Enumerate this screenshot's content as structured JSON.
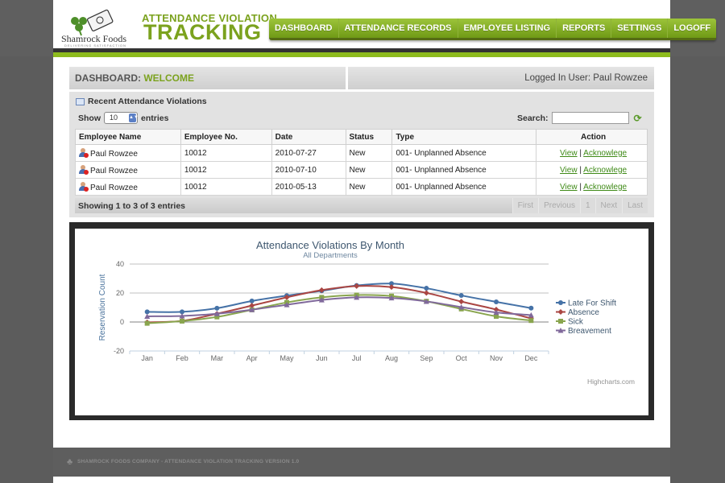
{
  "brand": {
    "logo_text": "Shamrock Foods",
    "logo_tagline": "DELIVERING SATISFACTION",
    "title_small": "ATTENDANCE VIOLATION",
    "title_big": "TRACKING"
  },
  "nav": {
    "items": [
      {
        "label": "DASHBOARD"
      },
      {
        "label": "ATTENDANCE RECORDS"
      },
      {
        "label": "EMPLOYEE LISTING"
      },
      {
        "label": "REPORTS"
      },
      {
        "label": "SETTINGS"
      },
      {
        "label": "LOGOFF"
      }
    ]
  },
  "dashboard": {
    "label": "DASHBOARD:",
    "welcome": "WELCOME",
    "logged_in": "Logged In User: Paul Rowzee"
  },
  "violations": {
    "title": "Recent Attendance Violations",
    "show_label": "Show",
    "entries_value": "10",
    "entries_label": "entries",
    "search_label": "Search:",
    "search_value": "",
    "columns": [
      "Employee Name",
      "Employee No.",
      "Date",
      "Status",
      "Type",
      "Action"
    ],
    "rows": [
      {
        "name": "Paul Rowzee",
        "number": "10012",
        "date": "2010-07-27",
        "status": "New",
        "type": "001- Unplanned Absence",
        "view": "View",
        "ack": "Acknowlege"
      },
      {
        "name": "Paul Rowzee",
        "number": "10012",
        "date": "2010-07-10",
        "status": "New",
        "type": "001- Unplanned Absence",
        "view": "View",
        "ack": "Acknowlege"
      },
      {
        "name": "Paul Rowzee",
        "number": "10012",
        "date": "2010-05-13",
        "status": "New",
        "type": "001- Unplanned Absence",
        "view": "View",
        "ack": "Acknowlege"
      }
    ],
    "info": "Showing 1 to 3 of 3 entries",
    "pager": {
      "first": "First",
      "previous": "Previous",
      "page": "1",
      "next": "Next",
      "last": "Last"
    }
  },
  "chart_data": {
    "type": "line",
    "title": "Attendance Violations By Month",
    "subtitle": "All Departments",
    "xlabel": "",
    "ylabel": "Reservation Count",
    "categories": [
      "Jan",
      "Feb",
      "Mar",
      "Apr",
      "May",
      "Jun",
      "Jul",
      "Aug",
      "Sep",
      "Oct",
      "Nov",
      "Dec"
    ],
    "ylim": [
      -20,
      40
    ],
    "yticks": [
      -20,
      0,
      20,
      40
    ],
    "legend": "right",
    "credit": "Highcharts.com",
    "series": [
      {
        "name": "Late For Shift",
        "color": "#4572a7",
        "marker": "circle",
        "values": [
          7,
          7,
          9.5,
          14.5,
          18.2,
          21.5,
          25.2,
          26.5,
          23.3,
          18.3,
          13.9,
          9.6
        ]
      },
      {
        "name": "Absence",
        "color": "#aa4643",
        "marker": "diamond",
        "values": [
          -0.2,
          0.8,
          5.7,
          11.3,
          17,
          22,
          24.8,
          24.1,
          20.1,
          14.1,
          8.6,
          2.5
        ]
      },
      {
        "name": "Sick",
        "color": "#89a54e",
        "marker": "square",
        "values": [
          -0.9,
          0.6,
          3.5,
          8.4,
          13.5,
          17,
          18.6,
          17.9,
          14.3,
          9,
          3.9,
          1
        ]
      },
      {
        "name": "Breavement",
        "color": "#80699b",
        "marker": "triangle",
        "values": [
          3.9,
          4.2,
          5.7,
          8.5,
          11.9,
          15.2,
          17,
          16.6,
          14.2,
          10.3,
          6.6,
          4.8
        ]
      }
    ]
  },
  "footer": {
    "text": "SHAMROCK FOODS COMPANY - ATTENDANCE VIOLATION TRACKING VERSION 1.0"
  }
}
